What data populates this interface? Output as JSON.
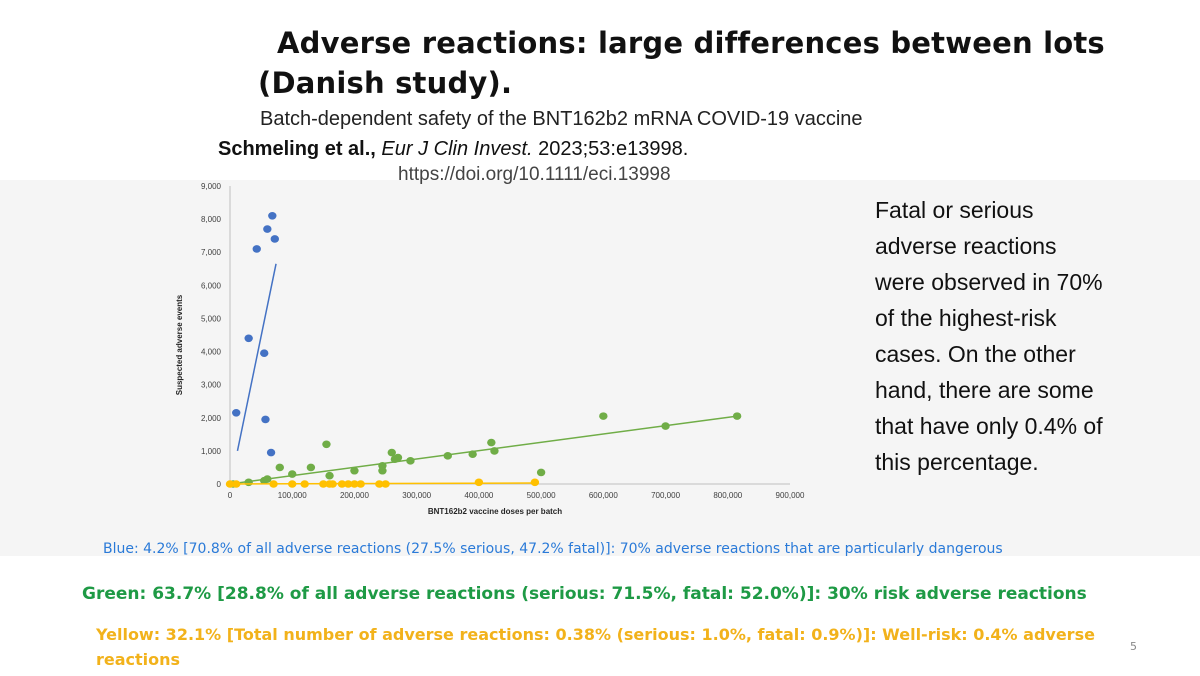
{
  "slide": {
    "title_line1": "Adverse reactions: large differences between lots",
    "title_line2": "(Danish study).",
    "subtitle": "Batch-dependent safety of the BNT162b2 mRNA COVID-19 vaccine",
    "citation_authors": "Schmeling   et al.,",
    "citation_journal": "Eur J Clin Invest.",
    "citation_rest": " 2023;53:e13998.",
    "doi": "https://doi.org/10.1111/eci.13998",
    "sidenote": "Fatal or serious\nadverse reactions\nwere observed in 70%\nof the highest-risk\ncases. On the other\nhand, there are some\nthat have only 0.4% of\nthis percentage.",
    "legend_blue": "Blue: 4.2% [70.8% of all adverse reactions (27.5% serious, 47.2% fatal)]: 70% adverse reactions that are particularly dangerous",
    "legend_green": "Green: 63.7% [28.8% of all adverse reactions (serious: 71.5%, fatal: 52.0%)]: 30% risk adverse reactions",
    "legend_yellow": "Yellow: 32.1% [Total number of adverse reactions: 0.38% (serious: 1.0%, fatal: 0.9%)]: Well-risk: 0.4% adverse reactions",
    "page_number": "5"
  },
  "colors": {
    "blue": "#4472c4",
    "green": "#70ad47",
    "yellow": "#ffc000"
  },
  "chart_data": {
    "type": "scatter",
    "title": "",
    "xlabel": "BNT162b2 vaccine doses per batch",
    "ylabel": "Suspected adverse events",
    "xlim": [
      0,
      900000
    ],
    "ylim": [
      0,
      9000
    ],
    "x_ticks": [
      "0",
      "100,000",
      "200,000",
      "300,000",
      "400,000",
      "500,000",
      "600,000",
      "700,000",
      "800,000",
      "900,000"
    ],
    "y_ticks": [
      "0",
      "1,000",
      "2,000",
      "3,000",
      "4,000",
      "5,000",
      "6,000",
      "7,000",
      "8,000",
      "9,000"
    ],
    "grid": false,
    "series": [
      {
        "color": "blue",
        "points": [
          [
            10000,
            2150
          ],
          [
            30000,
            4400
          ],
          [
            43000,
            7100
          ],
          [
            55000,
            3950
          ],
          [
            57000,
            1950
          ],
          [
            60000,
            7700
          ],
          [
            66000,
            950
          ],
          [
            68000,
            8100
          ],
          [
            72000,
            7400
          ]
        ],
        "trend": [
          [
            12000,
            1000
          ],
          [
            74000,
            6650
          ]
        ]
      },
      {
        "color": "green",
        "points": [
          [
            5000,
            0
          ],
          [
            30000,
            50
          ],
          [
            55000,
            100
          ],
          [
            60000,
            150
          ],
          [
            80000,
            500
          ],
          [
            100000,
            300
          ],
          [
            130000,
            500
          ],
          [
            155000,
            1200
          ],
          [
            160000,
            250
          ],
          [
            200000,
            400
          ],
          [
            245000,
            400
          ],
          [
            245000,
            550
          ],
          [
            260000,
            950
          ],
          [
            265000,
            750
          ],
          [
            270000,
            800
          ],
          [
            290000,
            700
          ],
          [
            350000,
            850
          ],
          [
            390000,
            900
          ],
          [
            420000,
            1250
          ],
          [
            425000,
            1000
          ],
          [
            500000,
            350
          ],
          [
            600000,
            2050
          ],
          [
            700000,
            1750
          ],
          [
            815000,
            2050
          ]
        ],
        "trend": [
          [
            0,
            0
          ],
          [
            815000,
            2050
          ]
        ]
      },
      {
        "color": "yellow",
        "points": [
          [
            0,
            0
          ],
          [
            10000,
            0
          ],
          [
            70000,
            0
          ],
          [
            100000,
            0
          ],
          [
            120000,
            0
          ],
          [
            150000,
            0
          ],
          [
            160000,
            0
          ],
          [
            165000,
            0
          ],
          [
            180000,
            0
          ],
          [
            190000,
            0
          ],
          [
            200000,
            0
          ],
          [
            210000,
            0
          ],
          [
            240000,
            0
          ],
          [
            250000,
            0
          ],
          [
            400000,
            50
          ],
          [
            490000,
            50
          ]
        ],
        "trend": [
          [
            0,
            0
          ],
          [
            490000,
            30
          ]
        ]
      }
    ]
  }
}
